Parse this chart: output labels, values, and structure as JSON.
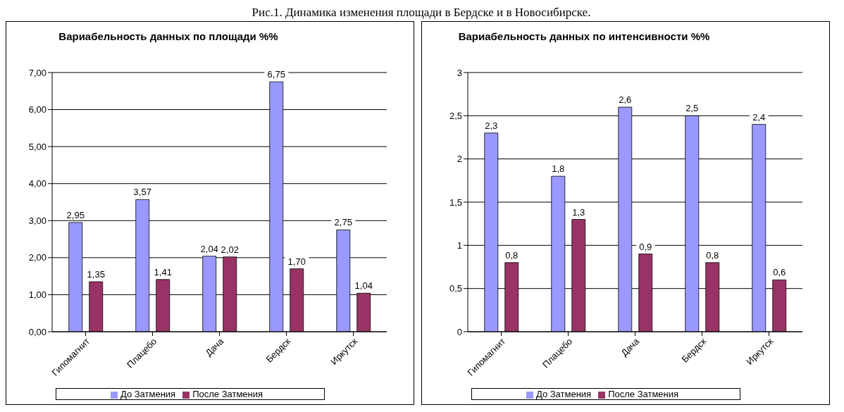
{
  "chart_data": [
    {
      "type": "bar",
      "title": "Вариабельность данных по площади %%",
      "annotations": [
        "Рис.1. Динамика изменения площади в Бердске и в Новосибирске."
      ],
      "categories": [
        "Гипомагнит",
        "Плацебо",
        "Дача",
        "Бердск",
        "Иркутск"
      ],
      "series": [
        {
          "name": "До Затмения",
          "color": "#9999ff",
          "values": [
            2.95,
            3.57,
            2.04,
            6.75,
            2.75
          ],
          "value_labels": [
            "2,95",
            "3,57",
            "2,04",
            "6,75",
            "2,75"
          ]
        },
        {
          "name": "После Затмения",
          "color": "#993366",
          "values": [
            1.35,
            1.41,
            2.02,
            1.7,
            1.04
          ],
          "value_labels": [
            "1,35",
            "1,41",
            "2,02",
            "1,70",
            "1,04"
          ]
        }
      ],
      "ylim": [
        0,
        7
      ],
      "yticks": [
        {
          "value": 0,
          "label": "0,00"
        },
        {
          "value": 1,
          "label": "1,00"
        },
        {
          "value": 2,
          "label": "2,00"
        },
        {
          "value": 3,
          "label": "3,00"
        },
        {
          "value": 4,
          "label": "4,00"
        },
        {
          "value": 5,
          "label": "5,00"
        },
        {
          "value": 6,
          "label": "6,00"
        },
        {
          "value": 7,
          "label": "7,00"
        }
      ],
      "grid": "y",
      "legend": "bottom"
    },
    {
      "type": "bar",
      "title": "Вариабельность данных по интенсивности %%",
      "categories": [
        "Гипомагнит",
        "Плацебо",
        "Дача",
        "Бердск",
        "Иркутск"
      ],
      "series": [
        {
          "name": "До Затмения",
          "color": "#9999ff",
          "values": [
            2.3,
            1.8,
            2.6,
            2.5,
            2.4
          ],
          "value_labels": [
            "2,3",
            "1,8",
            "2,6",
            "2,5",
            "2,4"
          ]
        },
        {
          "name": "После Затмения",
          "color": "#993366",
          "values": [
            0.8,
            1.3,
            0.9,
            0.8,
            0.6
          ],
          "value_labels": [
            "0,8",
            "1,3",
            "0,9",
            "0,8",
            "0,6"
          ]
        }
      ],
      "ylim": [
        0,
        3
      ],
      "yticks": [
        0,
        {
          "value": 0.5,
          "label": "0,5"
        },
        1,
        {
          "value": 1.5,
          "label": "1,5"
        },
        2,
        {
          "value": 2.5,
          "label": "2,5"
        },
        3
      ],
      "grid": "y",
      "legend": "bottom"
    }
  ]
}
